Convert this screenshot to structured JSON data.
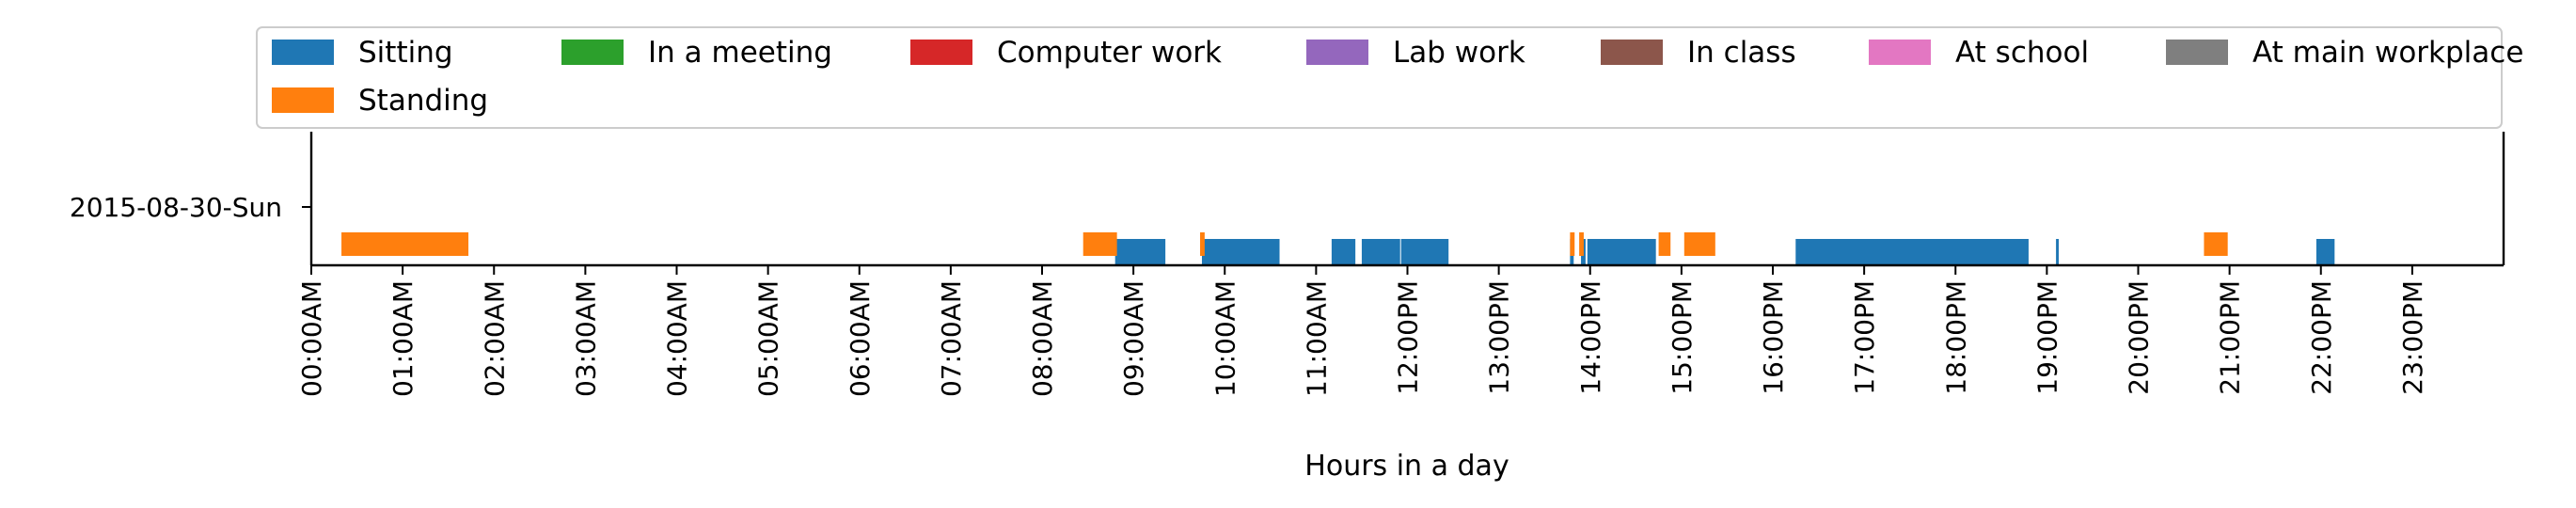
{
  "chart_data": {
    "type": "broken_barh",
    "xlabel": "Hours in a day",
    "ylabel": "",
    "xlim_hours": [
      0,
      24
    ],
    "x_ticks": [
      "00:00AM",
      "01:00AM",
      "02:00AM",
      "03:00AM",
      "04:00AM",
      "05:00AM",
      "06:00AM",
      "07:00AM",
      "08:00AM",
      "09:00AM",
      "10:00AM",
      "11:00AM",
      "12:00PM",
      "13:00PM",
      "14:00PM",
      "15:00PM",
      "16:00PM",
      "17:00PM",
      "18:00PM",
      "19:00PM",
      "20:00PM",
      "21:00PM",
      "22:00PM",
      "23:00PM"
    ],
    "x_tick_hours": [
      0,
      1,
      2,
      3,
      4,
      5,
      6,
      7,
      8,
      9,
      10,
      11,
      12,
      13,
      14,
      15,
      16,
      17,
      18,
      19,
      20,
      21,
      22,
      23
    ],
    "y_categories": [
      "2015-08-30-Sun"
    ],
    "legend_position": "top",
    "grid": false,
    "series": [
      {
        "name": "Sitting",
        "color": "#1f77b4",
        "level": 0,
        "intervals": [
          [
            8.8,
            9.35
          ],
          [
            9.75,
            10.6
          ],
          [
            11.17,
            11.43
          ],
          [
            11.5,
            11.92
          ],
          [
            11.93,
            12.45
          ],
          [
            13.78,
            13.82
          ],
          [
            13.9,
            13.95
          ],
          [
            13.97,
            14.72
          ],
          [
            16.25,
            18.8
          ],
          [
            19.1,
            19.13
          ],
          [
            21.95,
            22.15
          ]
        ]
      },
      {
        "name": "In a meeting",
        "color": "#2ca02c",
        "level": 0,
        "intervals": []
      },
      {
        "name": "Computer work",
        "color": "#d62728",
        "level": 0,
        "intervals": []
      },
      {
        "name": "Lab work",
        "color": "#9467bd",
        "level": 0,
        "intervals": []
      },
      {
        "name": "In class",
        "color": "#8c564b",
        "level": 0,
        "intervals": []
      },
      {
        "name": "At school",
        "color": "#e377c2",
        "level": 0,
        "intervals": []
      },
      {
        "name": "At main workplace",
        "color": "#7f7f7f",
        "level": 0,
        "intervals": []
      },
      {
        "name": "Standing",
        "color": "#ff7f0e",
        "level": 1,
        "intervals": [
          [
            0.33,
            1.72
          ],
          [
            8.45,
            8.82
          ],
          [
            9.73,
            9.78
          ],
          [
            13.78,
            13.83
          ],
          [
            13.88,
            13.93
          ],
          [
            14.75,
            14.88
          ],
          [
            15.03,
            15.37
          ],
          [
            20.72,
            20.98
          ]
        ]
      }
    ]
  }
}
